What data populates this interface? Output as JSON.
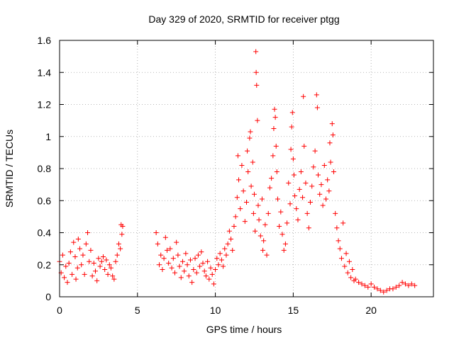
{
  "chart_data": {
    "type": "scatter",
    "title": "Day 329 of 2020, SRMTID for receiver ptgg",
    "xlabel": "GPS time / hours",
    "ylabel": "SRMTID / TECUs",
    "xlim": [
      0,
      24
    ],
    "ylim": [
      0,
      1.6
    ],
    "xticks": [
      0,
      5,
      10,
      15,
      20
    ],
    "yticks": [
      0,
      0.2,
      0.4,
      0.6,
      0.8,
      1.0,
      1.2,
      1.4,
      1.6
    ],
    "xtick_labels": [
      "0",
      "5",
      "10",
      "15",
      "20"
    ],
    "ytick_labels": [
      "0",
      "0.2",
      "0.4",
      "0.6",
      "0.8",
      "1",
      "1.2",
      "1.4",
      "1.6"
    ],
    "grid": true,
    "marker": "plus",
    "color": "#ff0000",
    "series": [
      {
        "name": "SRMTID",
        "points": [
          [
            0.0,
            0.22
          ],
          [
            0.1,
            0.15
          ],
          [
            0.2,
            0.26
          ],
          [
            0.3,
            0.12
          ],
          [
            0.4,
            0.19
          ],
          [
            0.5,
            0.09
          ],
          [
            0.6,
            0.21
          ],
          [
            0.7,
            0.28
          ],
          [
            0.8,
            0.14
          ],
          [
            0.9,
            0.34
          ],
          [
            1.0,
            0.25
          ],
          [
            1.05,
            0.11
          ],
          [
            1.15,
            0.18
          ],
          [
            1.2,
            0.36
          ],
          [
            1.3,
            0.3
          ],
          [
            1.4,
            0.2
          ],
          [
            1.5,
            0.26
          ],
          [
            1.6,
            0.14
          ],
          [
            1.7,
            0.33
          ],
          [
            1.8,
            0.4
          ],
          [
            1.9,
            0.22
          ],
          [
            2.0,
            0.29
          ],
          [
            2.1,
            0.13
          ],
          [
            2.2,
            0.21
          ],
          [
            2.3,
            0.16
          ],
          [
            2.4,
            0.1
          ],
          [
            2.5,
            0.24
          ],
          [
            2.6,
            0.19
          ],
          [
            2.7,
            0.22
          ],
          [
            2.8,
            0.25
          ],
          [
            2.9,
            0.17
          ],
          [
            3.0,
            0.23
          ],
          [
            3.1,
            0.14
          ],
          [
            3.2,
            0.2
          ],
          [
            3.3,
            0.18
          ],
          [
            3.4,
            0.13
          ],
          [
            3.5,
            0.11
          ],
          [
            3.6,
            0.22
          ],
          [
            3.7,
            0.26
          ],
          [
            3.8,
            0.33
          ],
          [
            3.9,
            0.3
          ],
          [
            3.95,
            0.45
          ],
          [
            4.0,
            0.39
          ],
          [
            4.05,
            0.44
          ],
          [
            6.2,
            0.4
          ],
          [
            6.3,
            0.33
          ],
          [
            6.4,
            0.2
          ],
          [
            6.5,
            0.26
          ],
          [
            6.6,
            0.17
          ],
          [
            6.7,
            0.24
          ],
          [
            6.8,
            0.37
          ],
          [
            6.9,
            0.29
          ],
          [
            7.0,
            0.21
          ],
          [
            7.1,
            0.3
          ],
          [
            7.2,
            0.18
          ],
          [
            7.3,
            0.24
          ],
          [
            7.4,
            0.15
          ],
          [
            7.5,
            0.34
          ],
          [
            7.6,
            0.26
          ],
          [
            7.7,
            0.19
          ],
          [
            7.8,
            0.12
          ],
          [
            7.9,
            0.22
          ],
          [
            8.0,
            0.16
          ],
          [
            8.1,
            0.27
          ],
          [
            8.2,
            0.2
          ],
          [
            8.3,
            0.13
          ],
          [
            8.4,
            0.23
          ],
          [
            8.5,
            0.09
          ],
          [
            8.6,
            0.17
          ],
          [
            8.7,
            0.24
          ],
          [
            8.8,
            0.15
          ],
          [
            8.9,
            0.26
          ],
          [
            9.0,
            0.19
          ],
          [
            9.1,
            0.28
          ],
          [
            9.2,
            0.21
          ],
          [
            9.3,
            0.16
          ],
          [
            9.4,
            0.13
          ],
          [
            9.5,
            0.22
          ],
          [
            9.6,
            0.11
          ],
          [
            9.7,
            0.18
          ],
          [
            9.8,
            0.14
          ],
          [
            9.9,
            0.08
          ],
          [
            10.0,
            0.17
          ],
          [
            10.1,
            0.24
          ],
          [
            10.2,
            0.2
          ],
          [
            10.3,
            0.27
          ],
          [
            10.4,
            0.23
          ],
          [
            10.5,
            0.19
          ],
          [
            10.6,
            0.3
          ],
          [
            10.7,
            0.26
          ],
          [
            10.8,
            0.33
          ],
          [
            10.9,
            0.41
          ],
          [
            11.0,
            0.36
          ],
          [
            11.1,
            0.29
          ],
          [
            11.2,
            0.44
          ],
          [
            11.3,
            0.5
          ],
          [
            11.4,
            0.62
          ],
          [
            11.45,
            0.88
          ],
          [
            11.5,
            0.73
          ],
          [
            11.6,
            0.55
          ],
          [
            11.7,
            0.82
          ],
          [
            11.8,
            0.66
          ],
          [
            11.9,
            0.47
          ],
          [
            12.0,
            0.59
          ],
          [
            12.05,
            0.91
          ],
          [
            12.1,
            0.78
          ],
          [
            12.2,
            0.99
          ],
          [
            12.25,
            1.03
          ],
          [
            12.3,
            0.69
          ],
          [
            12.4,
            0.84
          ],
          [
            12.45,
            0.52
          ],
          [
            12.5,
            0.64
          ],
          [
            12.55,
            0.41
          ],
          [
            12.6,
            1.53
          ],
          [
            12.62,
            1.4
          ],
          [
            12.65,
            1.32
          ],
          [
            12.7,
            1.1
          ],
          [
            12.75,
            0.57
          ],
          [
            12.8,
            0.48
          ],
          [
            12.9,
            0.38
          ],
          [
            13.0,
            0.61
          ],
          [
            13.05,
            0.29
          ],
          [
            13.1,
            0.35
          ],
          [
            13.2,
            0.45
          ],
          [
            13.3,
            0.26
          ],
          [
            13.4,
            0.52
          ],
          [
            13.5,
            0.68
          ],
          [
            13.6,
            0.74
          ],
          [
            13.7,
            0.88
          ],
          [
            13.75,
            1.05
          ],
          [
            13.8,
            1.17
          ],
          [
            13.85,
            1.12
          ],
          [
            13.9,
            0.94
          ],
          [
            13.95,
            0.78
          ],
          [
            14.0,
            0.61
          ],
          [
            14.1,
            0.44
          ],
          [
            14.2,
            0.53
          ],
          [
            14.3,
            0.39
          ],
          [
            14.4,
            0.29
          ],
          [
            14.5,
            0.33
          ],
          [
            14.6,
            0.46
          ],
          [
            14.7,
            0.71
          ],
          [
            14.8,
            0.58
          ],
          [
            14.85,
            0.92
          ],
          [
            14.9,
            1.06
          ],
          [
            14.95,
            1.15
          ],
          [
            15.0,
            0.86
          ],
          [
            15.05,
            0.76
          ],
          [
            15.1,
            0.63
          ],
          [
            15.2,
            0.55
          ],
          [
            15.3,
            0.48
          ],
          [
            15.4,
            0.67
          ],
          [
            15.5,
            0.78
          ],
          [
            15.6,
            0.62
          ],
          [
            15.65,
            1.25
          ],
          [
            15.7,
            0.94
          ],
          [
            15.8,
            0.71
          ],
          [
            15.9,
            0.52
          ],
          [
            16.0,
            0.43
          ],
          [
            16.1,
            0.59
          ],
          [
            16.2,
            0.69
          ],
          [
            16.3,
            0.81
          ],
          [
            16.4,
            0.91
          ],
          [
            16.5,
            1.26
          ],
          [
            16.55,
            1.18
          ],
          [
            16.6,
            0.76
          ],
          [
            16.7,
            0.64
          ],
          [
            16.8,
            0.7
          ],
          [
            16.9,
            0.57
          ],
          [
            17.0,
            0.82
          ],
          [
            17.1,
            0.61
          ],
          [
            17.2,
            0.73
          ],
          [
            17.3,
            0.66
          ],
          [
            17.35,
            0.96
          ],
          [
            17.4,
            0.84
          ],
          [
            17.5,
            1.08
          ],
          [
            17.55,
            1.01
          ],
          [
            17.6,
            0.78
          ],
          [
            17.7,
            0.52
          ],
          [
            17.8,
            0.43
          ],
          [
            17.9,
            0.35
          ],
          [
            18.0,
            0.3
          ],
          [
            18.1,
            0.24
          ],
          [
            18.2,
            0.46
          ],
          [
            18.3,
            0.19
          ],
          [
            18.4,
            0.27
          ],
          [
            18.5,
            0.15
          ],
          [
            18.6,
            0.22
          ],
          [
            18.7,
            0.12
          ],
          [
            18.8,
            0.17
          ],
          [
            18.9,
            0.1
          ],
          [
            19.0,
            0.11
          ],
          [
            19.2,
            0.09
          ],
          [
            19.4,
            0.08
          ],
          [
            19.6,
            0.07
          ],
          [
            19.8,
            0.06
          ],
          [
            20.0,
            0.08
          ],
          [
            20.2,
            0.06
          ],
          [
            20.4,
            0.05
          ],
          [
            20.6,
            0.04
          ],
          [
            20.8,
            0.03
          ],
          [
            21.0,
            0.04
          ],
          [
            21.2,
            0.05
          ],
          [
            21.4,
            0.05
          ],
          [
            21.6,
            0.06
          ],
          [
            21.8,
            0.07
          ],
          [
            22.0,
            0.09
          ],
          [
            22.2,
            0.08
          ],
          [
            22.4,
            0.07
          ],
          [
            22.6,
            0.08
          ],
          [
            22.8,
            0.07
          ]
        ]
      }
    ]
  }
}
